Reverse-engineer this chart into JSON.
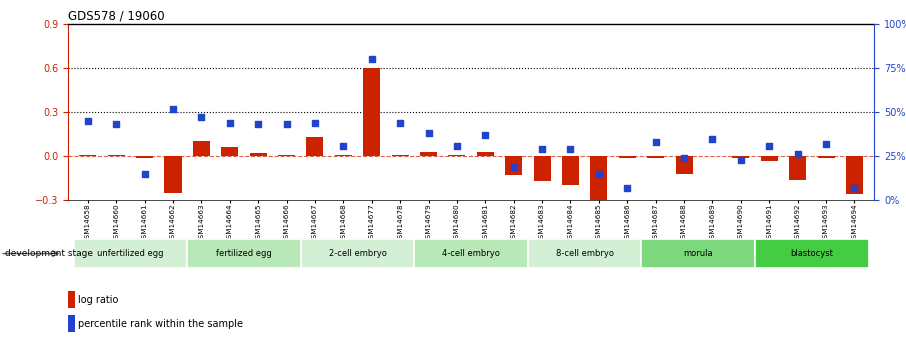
{
  "title": "GDS578 / 19060",
  "samples": [
    "GSM14658",
    "GSM14660",
    "GSM14661",
    "GSM14662",
    "GSM14663",
    "GSM14664",
    "GSM14665",
    "GSM14666",
    "GSM14667",
    "GSM14668",
    "GSM14677",
    "GSM14678",
    "GSM14679",
    "GSM14680",
    "GSM14681",
    "GSM14682",
    "GSM14683",
    "GSM14684",
    "GSM14685",
    "GSM14686",
    "GSM14687",
    "GSM14688",
    "GSM14689",
    "GSM14690",
    "GSM14691",
    "GSM14692",
    "GSM14693",
    "GSM14694"
  ],
  "log_ratio": [
    0.01,
    0.01,
    -0.01,
    -0.25,
    0.1,
    0.06,
    0.02,
    0.01,
    0.13,
    0.01,
    0.6,
    0.01,
    0.03,
    0.01,
    0.03,
    -0.13,
    -0.17,
    -0.2,
    -0.32,
    -0.01,
    -0.01,
    -0.12,
    0.0,
    -0.01,
    -0.03,
    -0.16,
    -0.01,
    -0.26
  ],
  "percentile_rank": [
    45,
    43,
    15,
    52,
    47,
    44,
    43,
    43,
    44,
    31,
    80,
    44,
    38,
    31,
    37,
    19,
    29,
    29,
    15,
    7,
    33,
    24,
    35,
    23,
    31,
    26,
    32,
    7
  ],
  "stage_groups": [
    {
      "label": "unfertilized egg",
      "start": 0,
      "end": 4,
      "color": "#d4f0d4"
    },
    {
      "label": "fertilized egg",
      "start": 4,
      "end": 8,
      "color": "#b8e8b8"
    },
    {
      "label": "2-cell embryo",
      "start": 8,
      "end": 12,
      "color": "#d4f0d4"
    },
    {
      "label": "4-cell embryo",
      "start": 12,
      "end": 16,
      "color": "#b8e8b8"
    },
    {
      "label": "8-cell embryo",
      "start": 16,
      "end": 20,
      "color": "#d4f0d4"
    },
    {
      "label": "morula",
      "start": 20,
      "end": 24,
      "color": "#7dd87d"
    },
    {
      "label": "blastocyst",
      "start": 24,
      "end": 28,
      "color": "#44cc44"
    }
  ],
  "bar_color": "#cc2200",
  "dot_color": "#2244cc",
  "ylim_left": [
    -0.3,
    0.9
  ],
  "ylim_right": [
    0,
    100
  ],
  "yticks_left": [
    -0.3,
    0.0,
    0.3,
    0.6,
    0.9
  ],
  "yticks_right": [
    0,
    25,
    50,
    75,
    100
  ],
  "hline_values": [
    0.3,
    0.6
  ],
  "background_color": "#ffffff",
  "stage_label_text": "development stage"
}
